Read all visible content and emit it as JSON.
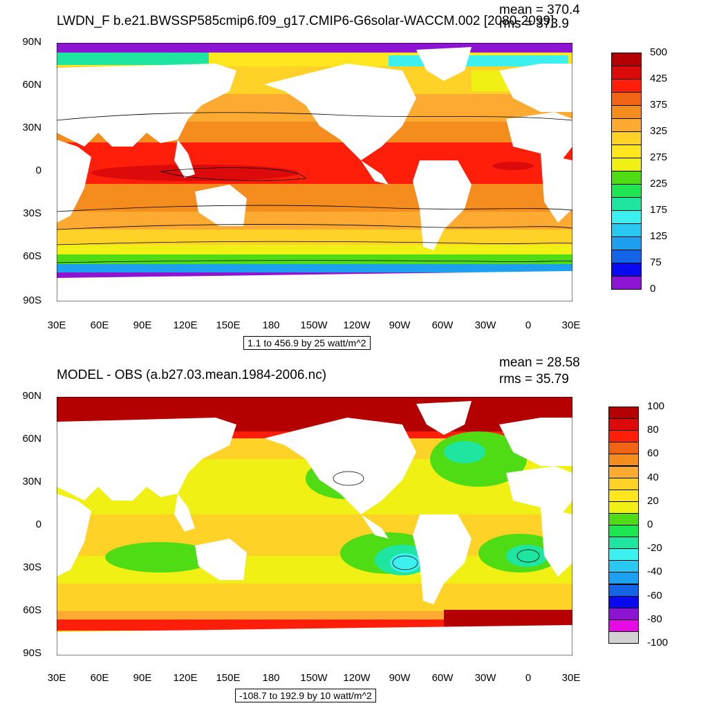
{
  "colors": {
    "land": "#ffffff",
    "scale": [
      "#6e6e6e",
      "#d2d2d2",
      "#e60ae6",
      "#8c14d2",
      "#0a0af0",
      "#1464e6",
      "#1ea0f0",
      "#28c8f0",
      "#3cf0f0",
      "#1ee6a0",
      "#1ee650",
      "#50dc14",
      "#f0f014",
      "#ffe61e",
      "#ffd228",
      "#fcaa32",
      "#f58c1e",
      "#f06414",
      "#ff1e0a",
      "#dc0a0a",
      "#b40000"
    ]
  },
  "maps": [
    {
      "title": "LWDN_F b.e21.BWSSP585cmip6.f09_g17.CMIP6-G6solar-WACCM.002 [2080-2099]",
      "mean": "mean = 370.4",
      "rms": "rms = 373.9",
      "range_note": "1.1 to 456.9 by 25 watt/m^2",
      "lat_labels": [
        "90N",
        "60N",
        "30N",
        "0",
        "30S",
        "60S",
        "90S"
      ],
      "lon_labels": [
        "30E",
        "60E",
        "90E",
        "120E",
        "150E",
        "180",
        "150W",
        "120W",
        "90W",
        "60W",
        "30W",
        "0",
        "30E"
      ],
      "colorbar_labels": [
        "500",
        "425",
        "375",
        "325",
        "275",
        "225",
        "175",
        "125",
        "75",
        "0"
      ],
      "colorbar_label_steps": [
        0,
        2,
        4,
        6,
        8,
        10,
        12,
        14,
        16,
        18
      ],
      "levels": 18
    },
    {
      "title": "MODEL - OBS (a.b27.03.mean.1984-2006.nc)",
      "mean": "mean = 28.58",
      "rms": "rms = 35.79",
      "range_note": "-108.7 to 192.9 by 10 watt/m^2",
      "lat_labels": [
        "90N",
        "60N",
        "30N",
        "0",
        "30S",
        "60S",
        "90S"
      ],
      "lon_labels": [
        "30E",
        "60E",
        "90E",
        "120E",
        "150E",
        "180",
        "150W",
        "120W",
        "90W",
        "60W",
        "30W",
        "0",
        "30E"
      ],
      "colorbar_labels": [
        "100",
        "80",
        "60",
        "40",
        "20",
        "0",
        "-20",
        "-40",
        "-60",
        "-80",
        "-100"
      ],
      "colorbar_label_steps": [
        0,
        2,
        4,
        6,
        8,
        10,
        12,
        14,
        16,
        18,
        20
      ],
      "levels": 20
    }
  ]
}
